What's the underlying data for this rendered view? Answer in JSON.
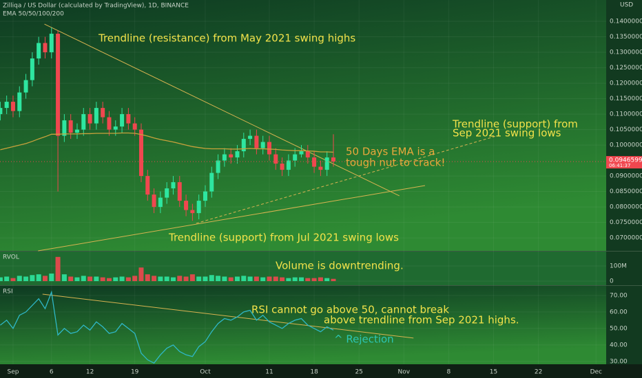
{
  "header": {
    "title": "Zilliqa / US Dollar (calculated by TradingView), 1D, BINANCE",
    "indicator": "EMA 50/50/100/200",
    "currency": "USD"
  },
  "chart_data": {
    "type": "candlestick",
    "x": [
      -2,
      -1,
      0,
      1,
      2,
      3,
      4,
      5,
      6,
      7,
      8,
      9,
      10,
      11,
      12,
      13,
      14,
      15,
      16,
      17,
      18,
      19,
      20,
      21,
      22,
      23,
      24,
      25,
      26,
      27,
      28,
      29,
      30,
      31,
      32,
      33,
      34,
      35,
      36,
      37,
      38,
      39,
      40,
      41,
      42,
      43,
      44,
      45,
      46,
      47,
      48,
      49,
      50
    ],
    "open": [
      0.11,
      0.112,
      0.114,
      0.111,
      0.117,
      0.121,
      0.128,
      0.133,
      0.13,
      0.136,
      0.103,
      0.108,
      0.104,
      0.105,
      0.11,
      0.107,
      0.112,
      0.109,
      0.105,
      0.106,
      0.11,
      0.107,
      0.105,
      0.09,
      0.084,
      0.08,
      0.083,
      0.086,
      0.088,
      0.082,
      0.079,
      0.078,
      0.082,
      0.085,
      0.091,
      0.095,
      0.097,
      0.096,
      0.098,
      0.102,
      0.103,
      0.099,
      0.101,
      0.097,
      0.094,
      0.092,
      0.095,
      0.097,
      0.098,
      0.096,
      0.093,
      0.092,
      0.096
    ],
    "high": [
      0.114,
      0.116,
      0.116,
      0.119,
      0.123,
      0.13,
      0.135,
      0.135,
      0.138,
      0.137,
      0.11,
      0.11,
      0.107,
      0.112,
      0.112,
      0.114,
      0.114,
      0.111,
      0.108,
      0.112,
      0.112,
      0.109,
      0.107,
      0.092,
      0.086,
      0.085,
      0.088,
      0.09,
      0.09,
      0.084,
      0.081,
      0.084,
      0.087,
      0.093,
      0.097,
      0.099,
      0.099,
      0.1,
      0.104,
      0.105,
      0.105,
      0.103,
      0.103,
      0.099,
      0.096,
      0.097,
      0.099,
      0.1,
      0.1,
      0.098,
      0.095,
      0.098,
      0.1035
    ],
    "low": [
      0.108,
      0.11,
      0.109,
      0.109,
      0.115,
      0.119,
      0.126,
      0.128,
      0.128,
      0.085,
      0.101,
      0.102,
      0.102,
      0.103,
      0.105,
      0.105,
      0.107,
      0.103,
      0.103,
      0.104,
      0.105,
      0.103,
      0.088,
      0.082,
      0.078,
      0.078,
      0.081,
      0.084,
      0.08,
      0.077,
      0.0755,
      0.076,
      0.08,
      0.083,
      0.089,
      0.093,
      0.094,
      0.094,
      0.096,
      0.1,
      0.097,
      0.097,
      0.095,
      0.092,
      0.09,
      0.09,
      0.093,
      0.096,
      0.094,
      0.091,
      0.09,
      0.09,
      0.093
    ],
    "close": [
      0.112,
      0.114,
      0.111,
      0.117,
      0.121,
      0.128,
      0.133,
      0.13,
      0.136,
      0.103,
      0.108,
      0.104,
      0.105,
      0.11,
      0.107,
      0.112,
      0.109,
      0.105,
      0.106,
      0.11,
      0.107,
      0.105,
      0.09,
      0.084,
      0.08,
      0.083,
      0.086,
      0.088,
      0.082,
      0.079,
      0.078,
      0.082,
      0.085,
      0.091,
      0.095,
      0.097,
      0.096,
      0.098,
      0.102,
      0.103,
      0.099,
      0.101,
      0.097,
      0.094,
      0.092,
      0.095,
      0.097,
      0.098,
      0.096,
      0.093,
      0.092,
      0.096,
      0.09466
    ],
    "up_color": "#2ee6a0",
    "down_color": "#f0474f",
    "ema": {
      "color": "#c9a23c",
      "values": [
        0.0985,
        0.099,
        0.0995,
        0.1,
        0.1005,
        0.1012,
        0.102,
        0.1027,
        0.1035,
        0.1035,
        0.1036,
        0.1036,
        0.1036,
        0.1037,
        0.1037,
        0.1038,
        0.1038,
        0.1038,
        0.1038,
        0.1039,
        0.1039,
        0.1038,
        0.1034,
        0.1029,
        0.1023,
        0.1018,
        0.1014,
        0.101,
        0.1005,
        0.1,
        0.0995,
        0.0992,
        0.0989,
        0.0988,
        0.0988,
        0.0988,
        0.0987,
        0.0987,
        0.0988,
        0.0989,
        0.0988,
        0.0988,
        0.0987,
        0.0986,
        0.0984,
        0.0983,
        0.0982,
        0.0982,
        0.0981,
        0.098,
        0.0978,
        0.0978,
        0.0977
      ]
    },
    "last_price": {
      "value": 0.09466,
      "label": "0.09465997",
      "countdown": "06:41:37"
    },
    "xlim": [
      -2.04,
      92.58
    ],
    "xticks": [
      {
        "value": 0,
        "label": "Sep"
      },
      6,
      12,
      19,
      {
        "value": 30,
        "label": "Oct"
      },
      {
        "value": 40,
        "label": "11"
      },
      {
        "value": 47,
        "label": "18"
      },
      {
        "value": 54,
        "label": "25"
      },
      {
        "value": 61,
        "label": "Nov"
      },
      {
        "value": 68,
        "label": "8"
      },
      {
        "value": 75,
        "label": "15"
      },
      {
        "value": 82,
        "label": "22"
      },
      {
        "value": 91,
        "label": "Dec"
      }
    ],
    "ylim": [
      0.0658,
      0.1469
    ],
    "yticks": [
      {
        "value": 0.14,
        "label": "0.14000000"
      },
      {
        "value": 0.135,
        "label": "0.13500000"
      },
      {
        "value": 0.13,
        "label": "0.13000000"
      },
      {
        "value": 0.125,
        "label": "0.12500000"
      },
      {
        "value": 0.12,
        "label": "0.12000000"
      },
      {
        "value": 0.115,
        "label": "0.11500000"
      },
      {
        "value": 0.11,
        "label": "0.11000000"
      },
      {
        "value": 0.105,
        "label": "0.10500000"
      },
      {
        "value": 0.1,
        "label": "0.10000000"
      },
      {
        "value": 0.09,
        "label": "0.09000000"
      },
      {
        "value": 0.085,
        "label": "0.08500000"
      },
      {
        "value": 0.08,
        "label": "0.08000000"
      },
      {
        "value": 0.075,
        "label": "0.07500000"
      },
      {
        "value": 0.07,
        "label": "0.07000000"
      }
    ],
    "trendlines": [
      {
        "x": [
          4.9,
          60.3
        ],
        "y": [
          0.1391,
          0.0836
        ]
      },
      {
        "x": [
          3.9,
          64.3
        ],
        "y": [
          0.0658,
          0.0869
        ]
      },
      {
        "x": [
          28.6,
          75.4
        ],
        "y": [
          0.0747,
          0.1029
        ],
        "dashed": true
      }
    ],
    "trendline_color": "#d9b451",
    "volume": {
      "name": "RVOL",
      "values": [
        25,
        30,
        20,
        35,
        30,
        40,
        45,
        35,
        50,
        160,
        45,
        30,
        25,
        35,
        30,
        30,
        25,
        20,
        25,
        30,
        25,
        35,
        90,
        45,
        35,
        30,
        30,
        25,
        35,
        30,
        45,
        30,
        30,
        40,
        35,
        30,
        25,
        30,
        35,
        30,
        30,
        25,
        30,
        30,
        25,
        20,
        25,
        25,
        20,
        20,
        25,
        20,
        15
      ],
      "ylim": [
        -27,
        200
      ],
      "yticks": [
        {
          "value": 100,
          "label": "100M"
        },
        0
      ]
    },
    "rsi": {
      "name": "RSI",
      "color": "#2fb8c8",
      "values": [
        52,
        55,
        50,
        58,
        60,
        64,
        68,
        62,
        72,
        46,
        50,
        47,
        48,
        52,
        49,
        54,
        51,
        47,
        48,
        53,
        50,
        47,
        35,
        31,
        29,
        34,
        38,
        40,
        36,
        34,
        33,
        39,
        42,
        48,
        53,
        56,
        55,
        57,
        60,
        61,
        55,
        58,
        54,
        52,
        50,
        53,
        55,
        56,
        52,
        50,
        48,
        51,
        49
      ],
      "ylim": [
        28.3,
        76.2
      ],
      "yticks": [
        {
          "value": 70,
          "label": "70.00"
        },
        {
          "value": 60,
          "label": "60.00"
        },
        {
          "value": 50,
          "label": "50.00"
        },
        {
          "value": 40,
          "label": "40.00"
        },
        {
          "value": 30,
          "label": "30.00"
        }
      ],
      "trendline": {
        "x": [
          4.6,
          62.5
        ],
        "y": [
          70.8,
          44.2
        ]
      }
    },
    "annotations": {
      "resistance": "Trendline (resistance) from May 2021 swing highs",
      "sep_support_1": "Trendline (support) from",
      "sep_support_2": "Sep 2021 swing lows",
      "ema_1": "50 Days EMA is a",
      "ema_2": "tough nut to crack!",
      "jul_support": "Trendline (support) from Jul 2021 swing lows",
      "volume": "Volume is downtrending.",
      "rsi_1": "RSI cannot go above 50, cannot break",
      "rsi_2": "above trendline from Sep 2021 highs.",
      "rejection": "^ Rejection"
    }
  }
}
